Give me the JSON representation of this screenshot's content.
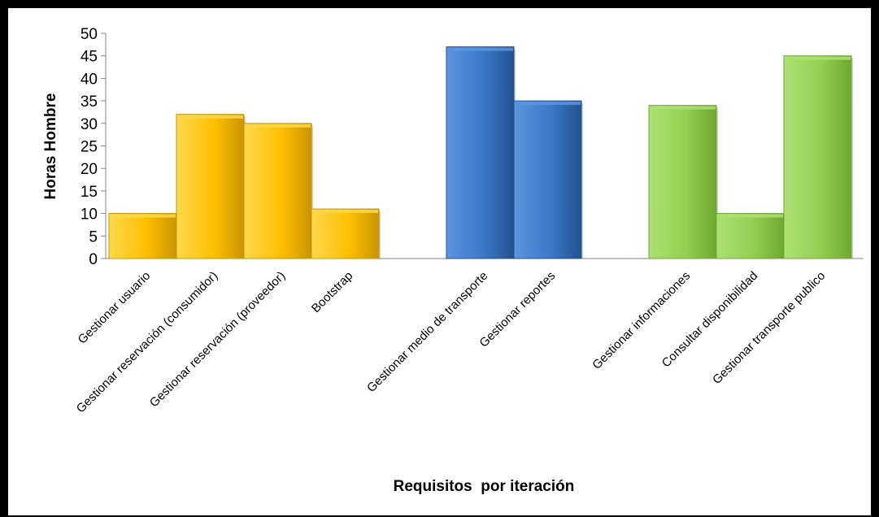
{
  "chart_data": {
    "type": "bar",
    "title": "",
    "xlabel": "Requisitos  por iteración",
    "ylabel": "Horas Hombre",
    "ylim": [
      0,
      50
    ],
    "yticks": [
      0,
      5,
      10,
      15,
      20,
      25,
      30,
      35,
      40,
      45,
      50
    ],
    "grid": false,
    "legend": "none",
    "groups": [
      {
        "color": "#FFC000",
        "color_light": "#FFD84D",
        "color_dark": "#C99400",
        "bars": [
          {
            "label": "Gestionar usuario",
            "value": 10
          },
          {
            "label": "Gestionar reservación (consumidor)",
            "value": 32
          },
          {
            "label": "Gestionar reservación (proveedor)",
            "value": 30
          },
          {
            "label": "Bootstrap",
            "value": 11
          }
        ]
      },
      {
        "color": "#3A78C9",
        "color_light": "#5C95DE",
        "color_dark": "#23528F",
        "bars": [
          {
            "label": "Gestionar medio de transporte",
            "value": 47
          },
          {
            "label": "Gestionar reportes",
            "value": 35
          }
        ]
      },
      {
        "color": "#92D050",
        "color_light": "#ADE174",
        "color_dark": "#6CA82F",
        "bars": [
          {
            "label": "Gestionar informaciones",
            "value": 34
          },
          {
            "label": "Consultar disponibilidad",
            "value": 10
          },
          {
            "label": "Gestionar transporte publico",
            "value": 45
          }
        ]
      }
    ]
  }
}
